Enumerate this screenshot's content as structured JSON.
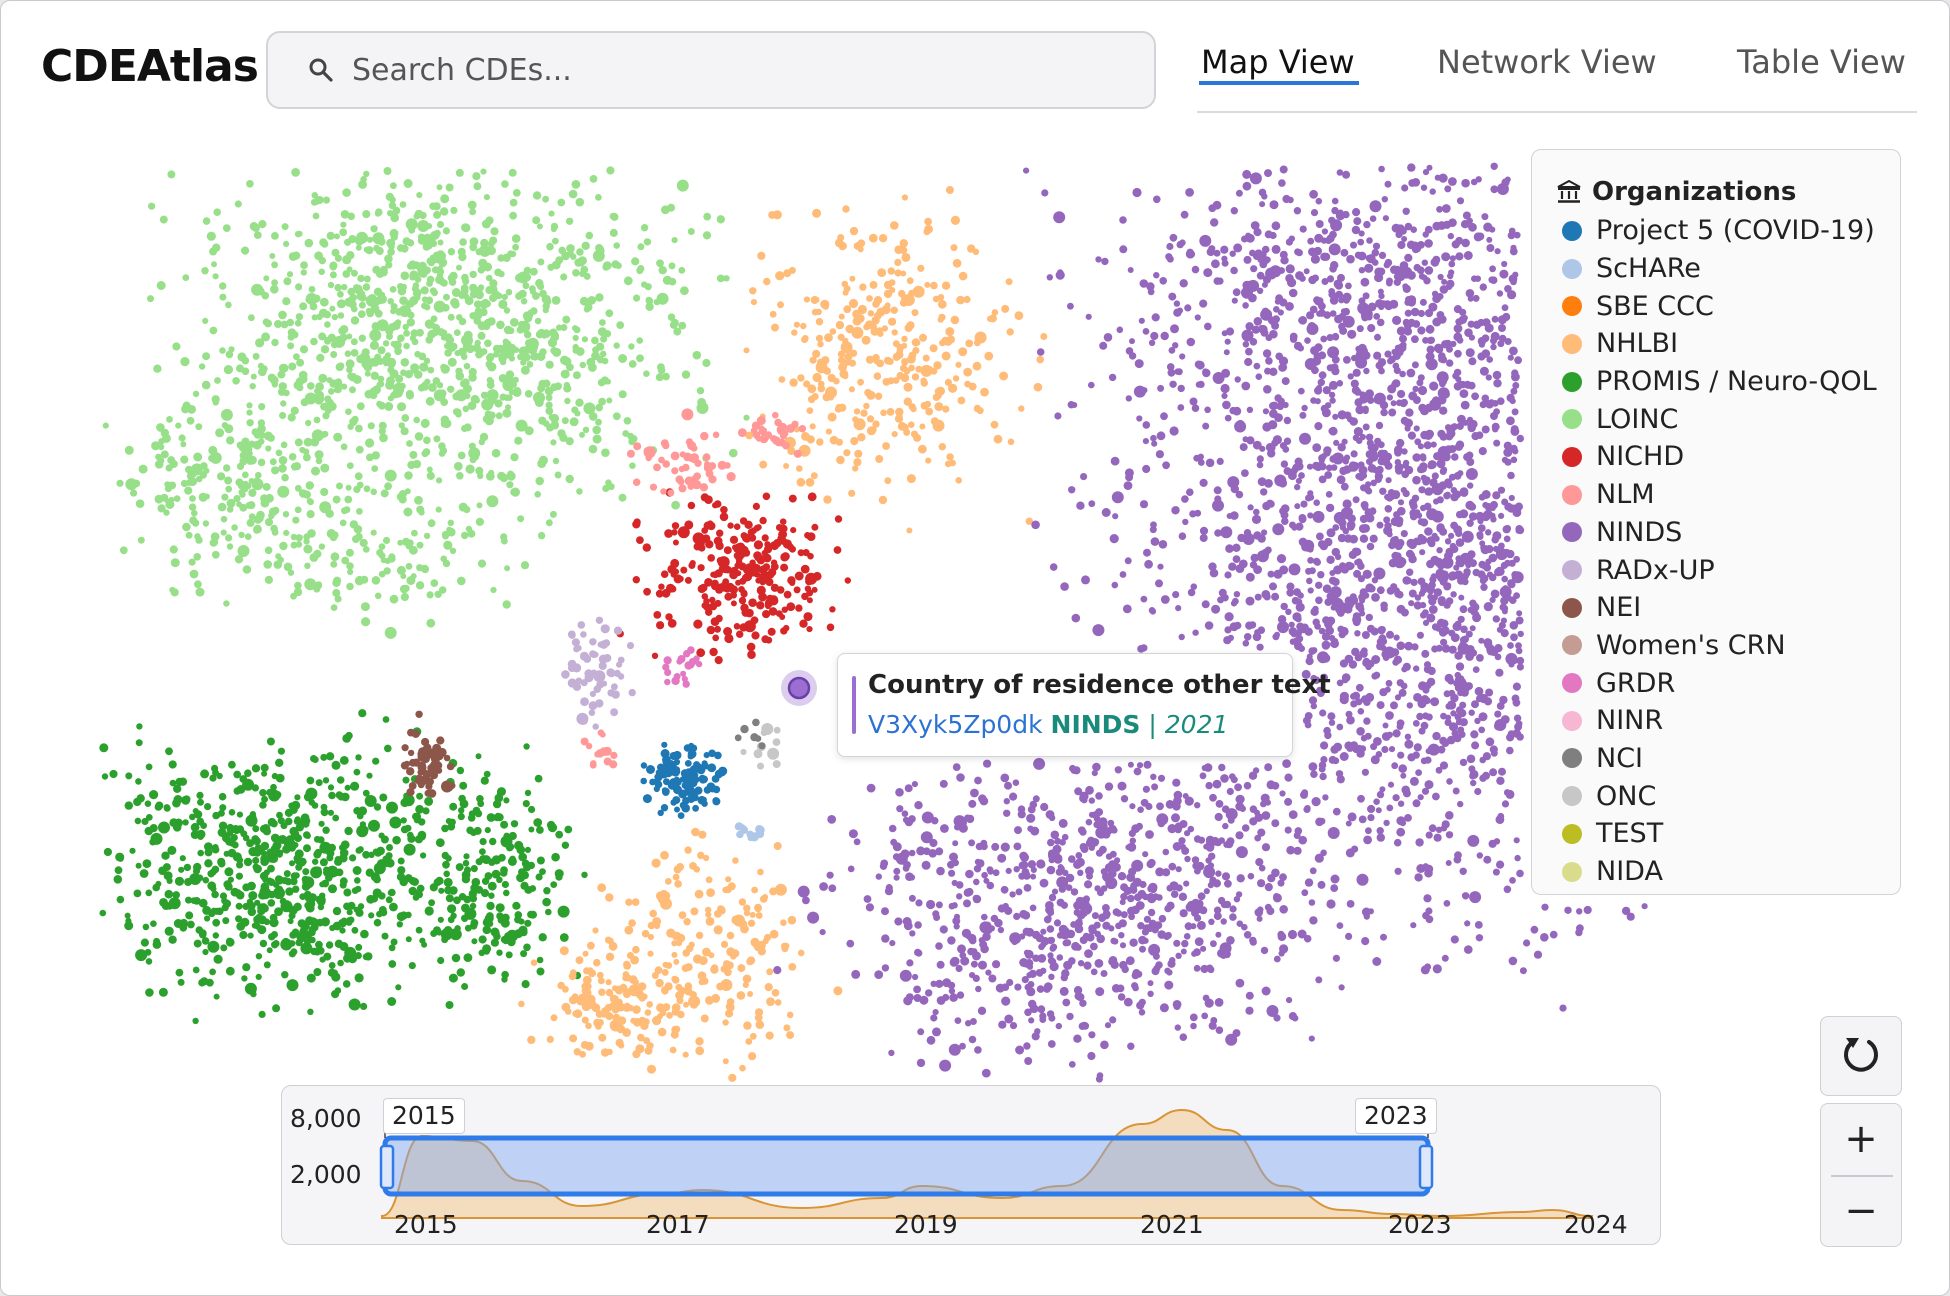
{
  "app": {
    "title": "CDEAtlas"
  },
  "search": {
    "placeholder": "Search CDEs...",
    "icon": "search-icon"
  },
  "tabs": [
    {
      "label": "Map View",
      "active": true
    },
    {
      "label": "Network View",
      "active": false
    },
    {
      "label": "Table View",
      "active": false
    }
  ],
  "legend": {
    "title": "Organizations",
    "icon": "institution-icon",
    "items": [
      {
        "label": "Project 5 (COVID-19)",
        "color": "#1f77b4"
      },
      {
        "label": "ScHARe",
        "color": "#aec7e8"
      },
      {
        "label": "SBE CCC",
        "color": "#ff7f0e"
      },
      {
        "label": "NHLBI",
        "color": "#ffbb78"
      },
      {
        "label": "PROMIS / Neuro-QOL",
        "color": "#2ca02c"
      },
      {
        "label": "LOINC",
        "color": "#98df8a"
      },
      {
        "label": "NICHD",
        "color": "#d62728"
      },
      {
        "label": "NLM",
        "color": "#ff9896"
      },
      {
        "label": "NINDS",
        "color": "#9467bd"
      },
      {
        "label": "RADx-UP",
        "color": "#c5b0d5"
      },
      {
        "label": "NEI",
        "color": "#8c564b"
      },
      {
        "label": "Women's CRN",
        "color": "#c49c94"
      },
      {
        "label": "GRDR",
        "color": "#e377c2"
      },
      {
        "label": "NINR",
        "color": "#f7b6d2"
      },
      {
        "label": "NCI",
        "color": "#7f7f7f"
      },
      {
        "label": "ONC",
        "color": "#c7c7c7"
      },
      {
        "label": "TEST",
        "color": "#bcbd22"
      },
      {
        "label": "NIDA",
        "color": "#dbdb8d"
      }
    ]
  },
  "tooltip": {
    "title": "Country of residence other text",
    "id": "V3Xyk5Zp0dk",
    "org": "NINDS",
    "separator": "|",
    "year": "2021",
    "accent": "#9b6fd1"
  },
  "controls": {
    "reset": "reset-icon",
    "zoom_in": "+",
    "zoom_out": "−"
  },
  "timeline": {
    "y_ticks": [
      "8,000",
      "2,000"
    ],
    "x_ticks": [
      "2015",
      "2017",
      "2019",
      "2021",
      "2023",
      "2024"
    ],
    "selection": {
      "start_label": "2015",
      "end_label": "2023"
    },
    "series_color": "#e09a3a"
  }
}
